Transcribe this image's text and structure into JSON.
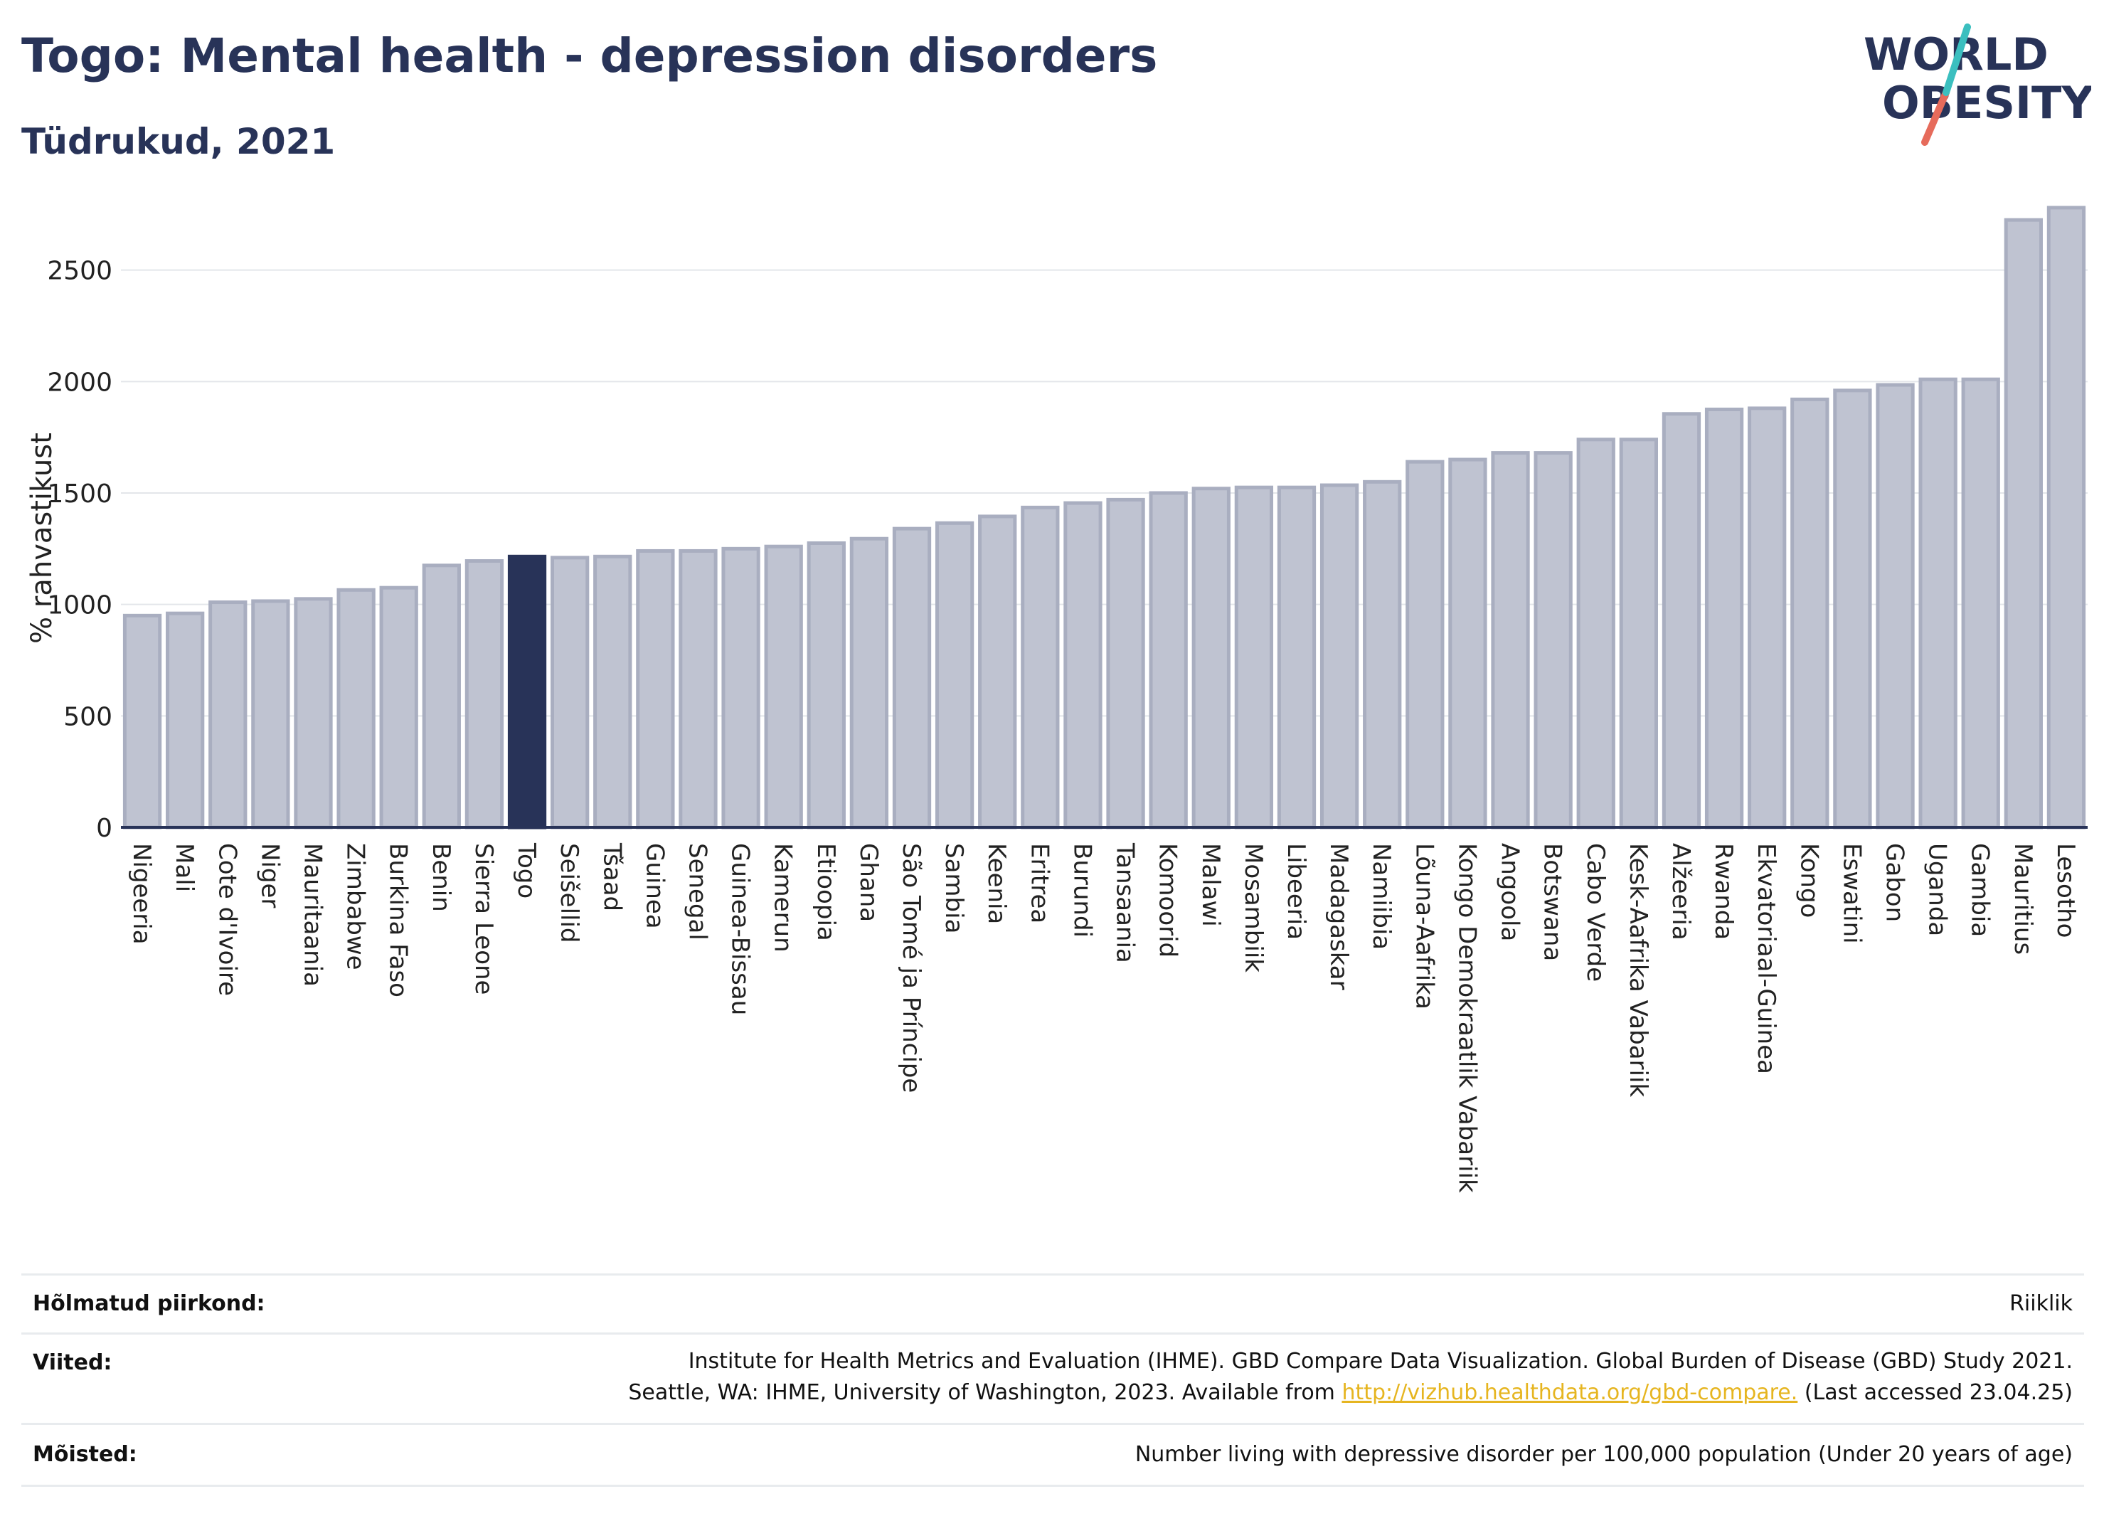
{
  "header": {
    "title": "Togo: Mental health - depression disorders",
    "subtitle": "Tüdrukud, 2021"
  },
  "logo": {
    "line1": "WORLD",
    "line2": "OBESITY"
  },
  "chart_data": {
    "type": "bar",
    "ylabel": "% rahvastikust",
    "yticks": [
      0,
      500,
      1000,
      1500,
      2000,
      2500
    ],
    "ylim": [
      0,
      2850
    ],
    "highlight": "Togo",
    "highlight_color": "#283358",
    "bar_color": "#bfc3d1",
    "bar_edge_color": "#a9aec0",
    "categories": [
      "Nigeeria",
      "Mali",
      "Cote d'Ivoire",
      "Niger",
      "Mauritaania",
      "Zimbabwe",
      "Burkina Faso",
      "Benin",
      "Sierra Leone",
      "Togo",
      "Seišellid",
      "Tšaad",
      "Guinea",
      "Senegal",
      "Guinea-Bissau",
      "Kamerun",
      "Etioopia",
      "Ghana",
      "São Tomé ja Príncipe",
      "Sambia",
      "Keenia",
      "Eritrea",
      "Burundi",
      "Tansaania",
      "Komoorid",
      "Malawi",
      "Mosambiik",
      "Libeeria",
      "Madagaskar",
      "Namiibia",
      "Lõuna-Aafrika",
      "Kongo Demokraatlik Vabariik",
      "Angoola",
      "Botswana",
      "Cabo Verde",
      "Kesk-Aafrika Vabariik",
      "Alžeeria",
      "Rwanda",
      "Ekvatoriaal-Guinea",
      "Kongo",
      "Eswatini",
      "Gabon",
      "Uganda",
      "Gambia",
      "Mauritius",
      "Lesotho"
    ],
    "values": [
      950,
      960,
      1010,
      1015,
      1025,
      1065,
      1075,
      1175,
      1195,
      1215,
      1210,
      1215,
      1240,
      1240,
      1250,
      1260,
      1275,
      1295,
      1340,
      1365,
      1395,
      1435,
      1455,
      1470,
      1500,
      1520,
      1525,
      1525,
      1535,
      1550,
      1640,
      1650,
      1680,
      1680,
      1740,
      1740,
      1855,
      1875,
      1880,
      1920,
      1960,
      1985,
      2010,
      2010,
      2725,
      2780
    ]
  },
  "footer": {
    "rows": [
      {
        "label": "Hõlmatud piirkond:",
        "lines": [
          "Riiklik"
        ]
      },
      {
        "label": "Viited:",
        "lines": [
          "Institute for Health Metrics and Evaluation (IHME). GBD Compare Data Visualization. Global Burden of Disease (GBD) Study 2021."
        ],
        "line2_pre": "Seattle, WA: IHME, University of Washington, 2023. Available from ",
        "line2_link": "http://vizhub.healthdata.org/gbd-compare.",
        "line2_post": " (Last accessed 23.04.25)"
      },
      {
        "label": "Mõisted:",
        "lines": [
          "Number living with depressive disorder per 100,000 population (Under 20 years of age)"
        ]
      }
    ]
  }
}
